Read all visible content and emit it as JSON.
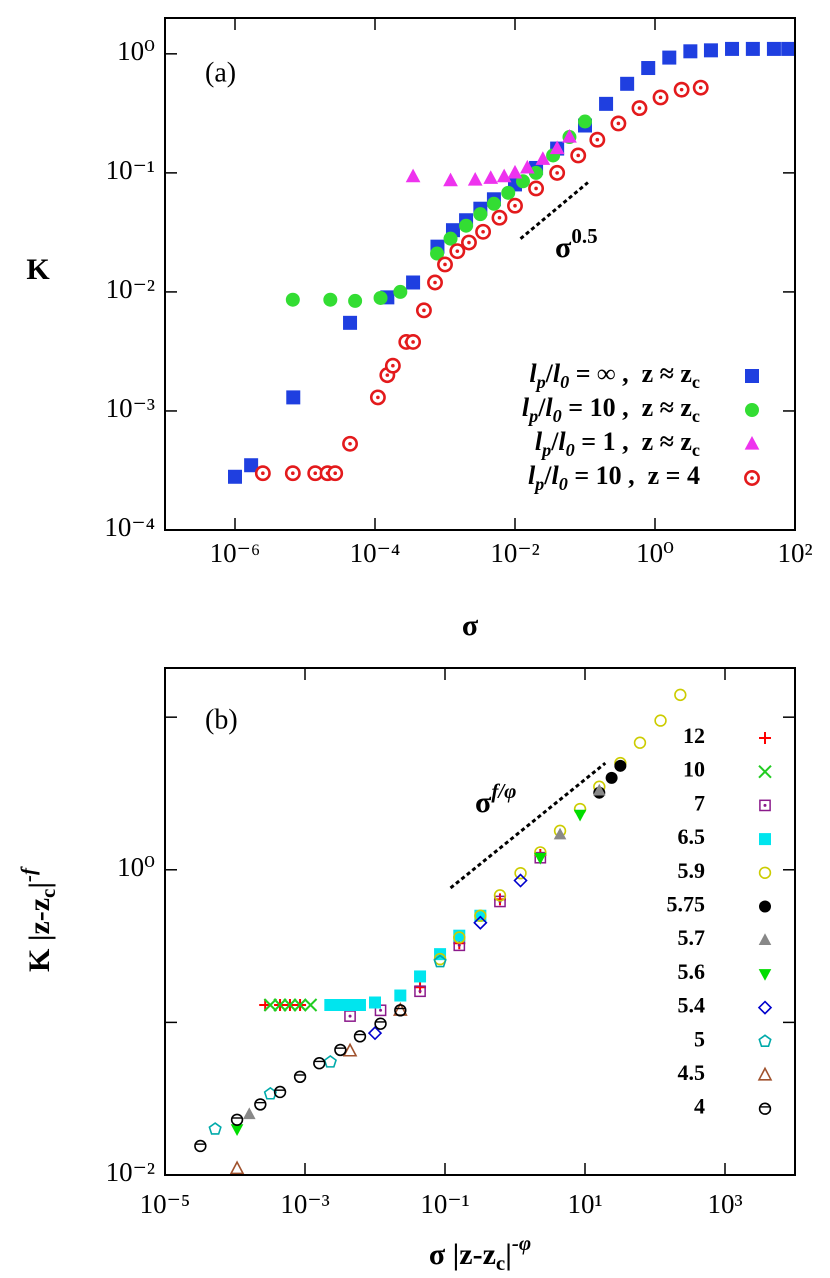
{
  "chart_data": [
    {
      "type": "scatter",
      "panel_label": "(a)",
      "xscale": "log",
      "yscale": "log",
      "xlabel": [
        {
          "text": "σ"
        }
      ],
      "ylabel": [
        {
          "text": "K"
        }
      ],
      "xlim": [
        1e-07,
        100
      ],
      "ylim": [
        0.0001,
        2
      ],
      "xticks": [
        {
          "value": 1e-06,
          "label": "10⁻⁶"
        },
        {
          "value": 0.0001,
          "label": "10⁻⁴"
        },
        {
          "value": 0.01,
          "label": "10⁻²"
        },
        {
          "value": 1,
          "label": "10⁰"
        },
        {
          "value": 100,
          "label": "10²"
        }
      ],
      "yticks": [
        {
          "value": 0.0001,
          "label": "10⁻⁴"
        },
        {
          "value": 0.001,
          "label": "10⁻³"
        },
        {
          "value": 0.01,
          "label": "10⁻²"
        },
        {
          "value": 0.1,
          "label": "10⁻¹"
        },
        {
          "value": 1,
          "label": "10⁰"
        }
      ],
      "legend": "lower right",
      "annotation": [
        {
          "text": "σ"
        },
        {
          "text": "0.5",
          "sup": true
        }
      ],
      "guide": {
        "x": [
          0.012,
          0.11
        ],
        "values": [
          0.028,
          0.083
        ]
      },
      "series": [
        {
          "name": [
            {
              "text": "l",
              "italic": true
            },
            {
              "text": "p",
              "sub": true,
              "italic": true
            },
            {
              "text": "/"
            },
            {
              "text": "l",
              "italic": true
            },
            {
              "text": "0",
              "sub": true,
              "italic": true
            },
            {
              "text": " = ∞ ,  z ≈ z"
            },
            {
              "text": "c",
              "sub": true
            }
          ],
          "color": "#1f3fe0",
          "marker": "square",
          "x": [
            1e-06,
            1.7e-06,
            6.8e-06,
            4.4e-05,
            0.00015,
            0.00035,
            0.00078,
            0.0013,
            0.002,
            0.0032,
            0.005,
            0.01,
            0.02,
            0.04,
            0.1,
            0.2,
            0.4,
            0.8,
            1.6,
            3.2,
            6.3,
            12.6,
            25,
            50,
            80
          ],
          "values": [
            0.00028,
            0.00035,
            0.0013,
            0.0055,
            0.009,
            0.012,
            0.024,
            0.033,
            0.04,
            0.05,
            0.06,
            0.08,
            0.11,
            0.16,
            0.25,
            0.38,
            0.56,
            0.76,
            0.93,
            1.05,
            1.07,
            1.1,
            1.1,
            1.1,
            1.1
          ]
        },
        {
          "name": [
            {
              "text": "l",
              "italic": true
            },
            {
              "text": "p",
              "sub": true,
              "italic": true
            },
            {
              "text": "/"
            },
            {
              "text": "l",
              "italic": true
            },
            {
              "text": "0",
              "sub": true,
              "italic": true
            },
            {
              "text": " = 10 ,  z ≈ z"
            },
            {
              "text": "c",
              "sub": true
            }
          ],
          "color": "#33dd33",
          "marker": "circle",
          "x": [
            6.7e-06,
            2.3e-05,
            5.2e-05,
            0.00012,
            0.00023,
            0.00077,
            0.0012,
            0.002,
            0.0032,
            0.005,
            0.008,
            0.013,
            0.02,
            0.035,
            0.06,
            0.1
          ],
          "values": [
            0.0086,
            0.0086,
            0.0084,
            0.0089,
            0.01,
            0.021,
            0.028,
            0.036,
            0.045,
            0.055,
            0.068,
            0.085,
            0.1,
            0.14,
            0.2,
            0.27
          ]
        },
        {
          "name": [
            {
              "text": "l",
              "italic": true
            },
            {
              "text": "p",
              "sub": true,
              "italic": true
            },
            {
              "text": "/"
            },
            {
              "text": "l",
              "italic": true
            },
            {
              "text": "0",
              "sub": true,
              "italic": true
            },
            {
              "text": " = 1 ,  z ≈ z"
            },
            {
              "text": "c",
              "sub": true
            }
          ],
          "color": "#ee33ee",
          "marker": "triangle",
          "x": [
            0.00035,
            0.0012,
            0.0027,
            0.0045,
            0.007,
            0.01,
            0.015,
            0.025,
            0.04,
            0.06
          ],
          "values": [
            0.093,
            0.086,
            0.087,
            0.09,
            0.093,
            0.1,
            0.11,
            0.13,
            0.16,
            0.2
          ]
        },
        {
          "name": [
            {
              "text": "l",
              "italic": true
            },
            {
              "text": "p",
              "sub": true,
              "italic": true
            },
            {
              "text": "/"
            },
            {
              "text": "l",
              "italic": true
            },
            {
              "text": "0",
              "sub": true,
              "italic": true
            },
            {
              "text": " = 10 ,  z = 4"
            }
          ],
          "color": "#e31a1c",
          "marker": "circle-dot",
          "x": [
            2.5e-06,
            6.7e-06,
            1.4e-05,
            2.1e-05,
            2.7e-05,
            4.4e-05,
            0.00011,
            0.00015,
            0.00018,
            0.00028,
            0.00035,
            0.0005,
            0.00072,
            0.001,
            0.0015,
            0.0022,
            0.0035,
            0.006,
            0.01,
            0.02,
            0.04,
            0.08,
            0.15,
            0.3,
            0.6,
            1.2,
            2.4,
            4.5
          ],
          "values": [
            0.0003,
            0.0003,
            0.0003,
            0.0003,
            0.0003,
            0.00053,
            0.0013,
            0.002,
            0.0024,
            0.0038,
            0.0038,
            0.007,
            0.012,
            0.017,
            0.022,
            0.026,
            0.032,
            0.042,
            0.053,
            0.074,
            0.1,
            0.14,
            0.19,
            0.26,
            0.35,
            0.43,
            0.5,
            0.52
          ]
        }
      ]
    },
    {
      "type": "scatter",
      "panel_label": "(b)",
      "xscale": "log",
      "yscale": "log",
      "xlabel": [
        {
          "text": "σ |z-z"
        },
        {
          "text": "c",
          "sub": true
        },
        {
          "text": "|"
        },
        {
          "text": "-φ",
          "sup": true,
          "italic": true
        }
      ],
      "ylabel": [
        {
          "text": "K |z-z"
        },
        {
          "text": "c",
          "sub": true
        },
        {
          "text": "|"
        },
        {
          "text": "-f",
          "sup": true,
          "italic": true
        }
      ],
      "xlim": [
        1e-05,
        10000
      ],
      "ylim": [
        0.01,
        21
      ],
      "xticks": [
        {
          "value": 1e-05,
          "label": "10⁻⁵"
        },
        {
          "value": 0.001,
          "label": "10⁻³"
        },
        {
          "value": 0.1,
          "label": "10⁻¹"
        },
        {
          "value": 10,
          "label": "10¹"
        },
        {
          "value": 1000,
          "label": "10³"
        }
      ],
      "yticks": [
        {
          "value": 0.01,
          "label": "10⁻²"
        },
        {
          "value": 1,
          "label": "10⁰"
        }
      ],
      "yminor_ticks": [
        0.1,
        10
      ],
      "legend": "right",
      "annotation": [
        {
          "text": "σ"
        },
        {
          "text": "f/φ",
          "sup": true,
          "italic": true
        }
      ],
      "guide": {
        "x": [
          0.12,
          19.5
        ],
        "values": [
          0.76,
          5.0
        ]
      },
      "series": [
        {
          "name": "12",
          "color": "#ff0000",
          "marker": "plus",
          "x": [
            0.00027,
            0.00044,
            0.00061,
            0.00085,
            0.044,
            0.16,
            0.61,
            2.3
          ],
          "values": [
            0.13,
            0.13,
            0.13,
            0.13,
            0.17,
            0.33,
            0.64,
            1.25
          ]
        },
        {
          "name": "10",
          "color": "#22cc22",
          "marker": "cross",
          "x": [
            0.00032,
            0.00044,
            0.00061,
            0.00085,
            0.0012
          ],
          "values": [
            0.13,
            0.13,
            0.13,
            0.13,
            0.13
          ]
        },
        {
          "name": "7",
          "color": "#8b1a8b",
          "marker": "square-dot",
          "x": [
            0.0044,
            0.012,
            0.044,
            0.16,
            0.61,
            2.3
          ],
          "values": [
            0.11,
            0.12,
            0.16,
            0.32,
            0.62,
            1.2
          ]
        },
        {
          "name": "6.5",
          "color": "#00e5ee",
          "marker": "square",
          "x": [
            0.0023,
            0.0032,
            0.0044,
            0.0061,
            0.01,
            0.023,
            0.044,
            0.085,
            0.16,
            0.32
          ],
          "values": [
            0.13,
            0.13,
            0.13,
            0.13,
            0.135,
            0.15,
            0.2,
            0.28,
            0.37,
            0.5
          ]
        },
        {
          "name": "5.9",
          "color": "#cccc00",
          "marker": "circle-open",
          "x": [
            0.085,
            0.16,
            0.32,
            0.61,
            1.2,
            2.3,
            4.4,
            8.5,
            16,
            32,
            61,
            120,
            230
          ],
          "values": [
            0.26,
            0.36,
            0.5,
            0.68,
            0.95,
            1.3,
            1.8,
            2.5,
            3.5,
            5,
            6.8,
            9.5,
            14
          ]
        },
        {
          "name": "5.75",
          "color": "#000000",
          "marker": "circle",
          "x": [
            16,
            24,
            32
          ],
          "values": [
            3.2,
            4.0,
            4.8
          ]
        },
        {
          "name": "5.7",
          "color": "#888888",
          "marker": "triangle",
          "x": [
            0.00016,
            4.4,
            16
          ],
          "values": [
            0.025,
            1.7,
            3.3
          ]
        },
        {
          "name": "5.6",
          "color": "#00dd00",
          "marker": "triangle-down",
          "x": [
            0.000107,
            2.3,
            8.5
          ],
          "values": [
            0.02,
            1.2,
            2.3
          ]
        },
        {
          "name": "5.4",
          "color": "#0000cc",
          "marker": "diamond-open",
          "x": [
            0.01,
            0.32,
            1.2
          ],
          "values": [
            0.085,
            0.45,
            0.85
          ]
        },
        {
          "name": "5",
          "color": "#00aaaa",
          "marker": "pentagon-open",
          "x": [
            5.2e-05,
            0.00032,
            0.0023,
            0.085
          ],
          "values": [
            0.02,
            0.034,
            0.055,
            0.25
          ]
        },
        {
          "name": "4.5",
          "color": "#a0522d",
          "marker": "triangle-open",
          "x": [
            0.000107,
            0.0044,
            0.023
          ],
          "values": [
            0.011,
            0.065,
            0.12
          ]
        },
        {
          "name": "4",
          "color": "#000000",
          "marker": "circle-line",
          "x": [
            3.2e-05,
            0.000107,
            0.00023,
            0.00044,
            0.00085,
            0.0016,
            0.0032,
            0.0061,
            0.012,
            0.023
          ],
          "values": [
            0.0155,
            0.023,
            0.029,
            0.035,
            0.044,
            0.054,
            0.066,
            0.081,
            0.098,
            0.12
          ]
        }
      ]
    }
  ]
}
